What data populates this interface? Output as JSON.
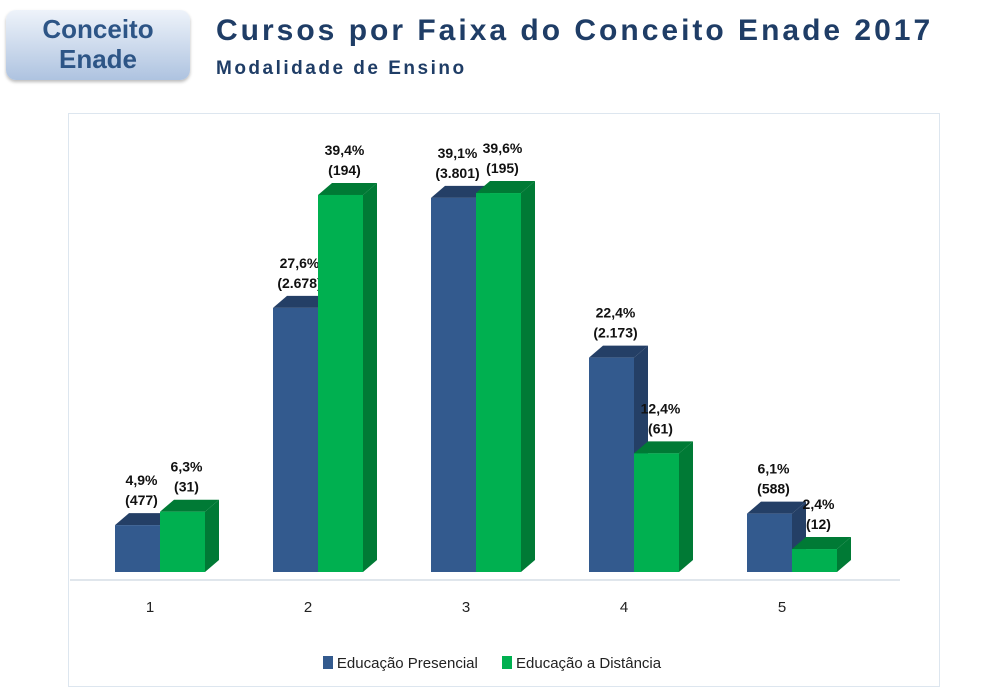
{
  "header": {
    "badge_line1": "Conceito",
    "badge_line2": "Enade",
    "title": "Cursos por Faixa do Conceito Enade 2017",
    "subtitle": "Modalidade de Ensino"
  },
  "chart_data": {
    "type": "bar",
    "title": "Cursos por Faixa do Conceito Enade 2017",
    "subtitle": "Modalidade de Ensino",
    "categories": [
      "1",
      "2",
      "3",
      "4",
      "5"
    ],
    "series": [
      {
        "name": "Educação Presencial",
        "color": "#335a8e",
        "side": "#243f66",
        "values": [
          4.9,
          27.6,
          39.1,
          22.4,
          6.1
        ],
        "labels": [
          "4,9%",
          "27,6%",
          "39,1%",
          "22,4%",
          "6,1%"
        ],
        "counts": [
          "(477)",
          "(2.678)",
          "(3.801)",
          "(2.173)",
          "(588)"
        ]
      },
      {
        "name": "Educação a Distância",
        "color": "#00b050",
        "side": "#007a35",
        "values": [
          6.3,
          39.4,
          39.6,
          12.4,
          2.4
        ],
        "labels": [
          "6,3%",
          "39,4%",
          "39,6%",
          "12,4%",
          "2,4%"
        ],
        "counts": [
          "(31)",
          "(194)",
          "(195)",
          "(61)",
          "(12)"
        ]
      }
    ],
    "ylim": [
      0,
      40
    ],
    "grid": false,
    "legend": "bottom",
    "xlabel": "",
    "ylabel": ""
  }
}
